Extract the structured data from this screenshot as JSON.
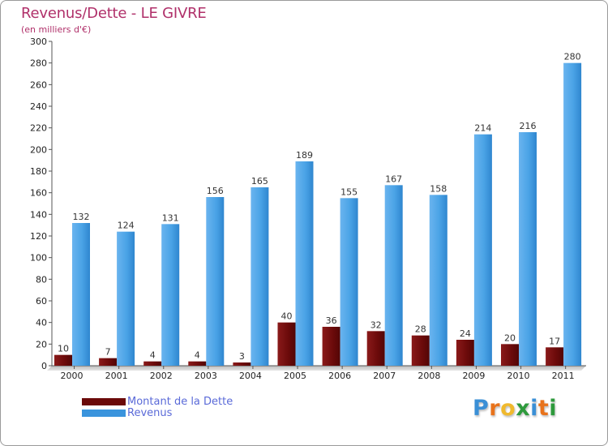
{
  "chart_data": {
    "type": "bar",
    "title": "Revenus/Dette - LE GIVRE",
    "subtitle": "(en milliers d'€)",
    "xlabel": "",
    "ylabel": "",
    "categories": [
      "2000",
      "2001",
      "2002",
      "2003",
      "2004",
      "2005",
      "2006",
      "2007",
      "2008",
      "2009",
      "2010",
      "2011"
    ],
    "series": [
      {
        "name": "Montant de la Dette",
        "color": "#6b0a0a",
        "values": [
          10,
          7,
          4,
          4,
          3,
          40,
          36,
          32,
          28,
          24,
          20,
          17
        ]
      },
      {
        "name": "Revenus",
        "color": "#3a94dd",
        "values": [
          132,
          124,
          131,
          156,
          165,
          189,
          155,
          167,
          158,
          214,
          216,
          280
        ]
      }
    ],
    "ylim": [
      0,
      300
    ],
    "yticks": [
      0,
      20,
      40,
      60,
      80,
      100,
      120,
      140,
      160,
      180,
      200,
      220,
      240,
      260,
      280,
      300
    ],
    "grid": false,
    "legend": "bottom-left"
  },
  "logo": {
    "letters": [
      {
        "ch": "P",
        "color": "#3a8fd6"
      },
      {
        "ch": "r",
        "color": "#e8731c"
      },
      {
        "ch": "o",
        "color": "#f0b92d"
      },
      {
        "ch": "x",
        "color": "#2e9a3c"
      },
      {
        "ch": "i",
        "color": "#3a8fd6"
      },
      {
        "ch": "t",
        "color": "#e8731c"
      },
      {
        "ch": "i",
        "color": "#2e9a3c"
      }
    ]
  }
}
